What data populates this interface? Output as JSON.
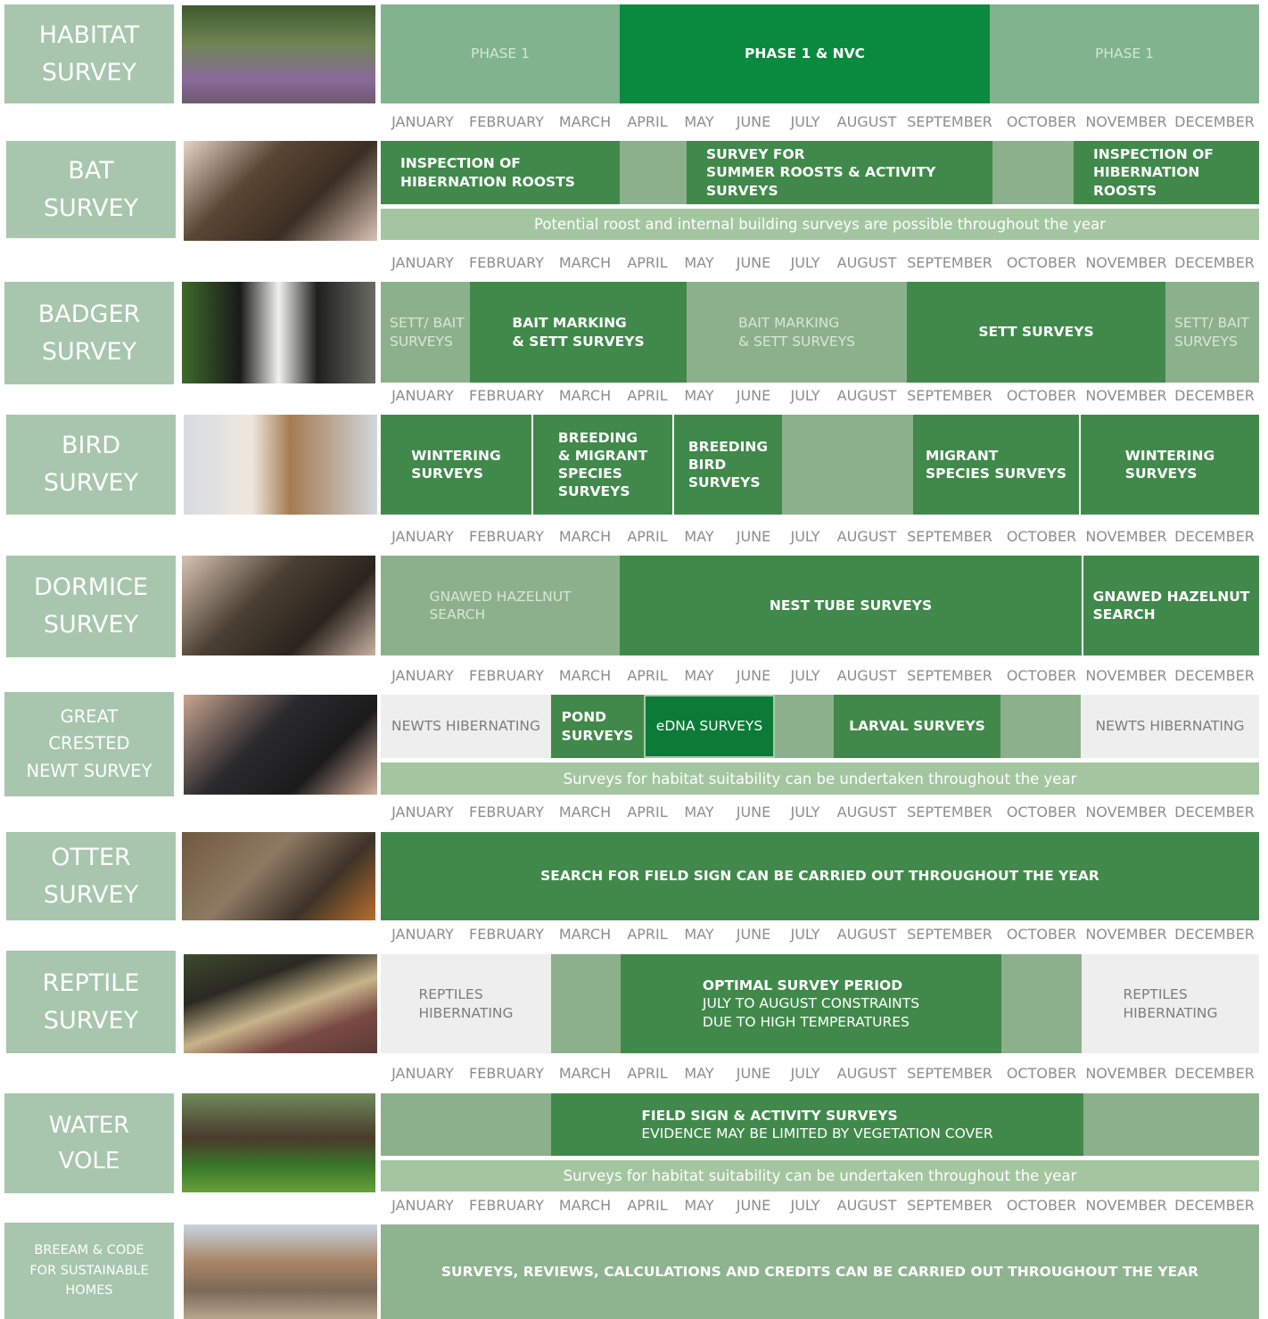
{
  "months": [
    "JANUARY",
    "FEBRUARY",
    "MARCH",
    "APRIL",
    "MAY",
    "JUNE",
    "JULY",
    "AUGUST",
    "SEPTEMBER",
    "OCTOBER",
    "NOVEMBER",
    "DECEMBER"
  ],
  "rows": [
    {
      "label": "HABITAT\nSURVEY",
      "bars": [
        {
          "title": "PHASE 1"
        },
        {
          "title": "PHASE 1 & NVC"
        },
        {
          "title": "PHASE 1"
        }
      ]
    },
    {
      "label": "BAT\nSURVEY",
      "bars": [
        {
          "title": "INSPECTION OF\nHIBERNATION ROOSTS"
        },
        {
          "title": "SURVEY FOR\nSUMMER ROOSTS & ACTIVITY SURVEYS"
        },
        {
          "title": "INSPECTION OF\nHIBERNATION ROOSTS"
        }
      ],
      "note": "Potential roost and internal building surveys are possible throughout the year"
    },
    {
      "label": "BADGER\nSURVEY",
      "bars": [
        {
          "title": "SETT/ BAIT\nSURVEYS"
        },
        {
          "title": "BAIT MARKING\n& SETT SURVEYS"
        },
        {
          "title": "BAIT MARKING\n& SETT SURVEYS"
        },
        {
          "title": "SETT SURVEYS"
        },
        {
          "title": "SETT/ BAIT\nSURVEYS"
        }
      ]
    },
    {
      "label": "BIRD\nSURVEY",
      "bars": [
        {
          "title": "WINTERING\nSURVEYS"
        },
        {
          "title": "BREEDING\n& MIGRANT\nSPECIES\nSURVEYS"
        },
        {
          "title": "BREEDING\nBIRD\nSURVEYS"
        },
        {
          "title": "MIGRANT\nSPECIES SURVEYS"
        },
        {
          "title": "WINTERING\nSURVEYS"
        }
      ]
    },
    {
      "label": "DORMICE\nSURVEY",
      "bars": [
        {
          "title": "GNAWED HAZELNUT\nSEARCH"
        },
        {
          "title": "NEST TUBE SURVEYS"
        },
        {
          "title": "GNAWED HAZELNUT\nSEARCH"
        }
      ]
    },
    {
      "label": "GREAT\nCRESTED\nNEWT SURVEY",
      "bars": [
        {
          "title": "NEWTS HIBERNATING"
        },
        {
          "title": "POND\nSURVEYS"
        },
        {
          "title": "eDNA SURVEYS"
        },
        {
          "title": "LARVAL SURVEYS"
        },
        {
          "title": "NEWTS HIBERNATING"
        }
      ],
      "note": "Surveys for habitat suitability can be undertaken throughout the year"
    },
    {
      "label": "OTTER\nSURVEY",
      "bars": [
        {
          "title": "SEARCH FOR FIELD SIGN CAN BE CARRIED OUT THROUGHOUT THE YEAR"
        }
      ]
    },
    {
      "label": "REPTILE\nSURVEY",
      "bars": [
        {
          "title": "REPTILES\nHIBERNATING"
        },
        {
          "title": "OPTIMAL SURVEY PERIOD",
          "detail": "JULY TO AUGUST CONSTRAINTS\nDUE TO HIGH TEMPERATURES"
        },
        {
          "title": "REPTILES\nHIBERNATING"
        }
      ]
    },
    {
      "label": "WATER\nVOLE",
      "bars": [
        {
          "title": "FIELD SIGN & ACTIVITY SURVEYS",
          "detail": "EVIDENCE MAY BE LIMITED BY VEGETATION COVER"
        }
      ],
      "note": "Surveys for habitat suitability can be undertaken throughout the year"
    },
    {
      "label": "BREEAM & CODE\nFOR SUSTAINABLE\nHOMES",
      "bars": [
        {
          "title": "SURVEYS, REVIEWS, CALCULATIONS AND CREDITS CAN BE CARRIED OUT THROUGHOUT THE YEAR"
        }
      ]
    }
  ]
}
